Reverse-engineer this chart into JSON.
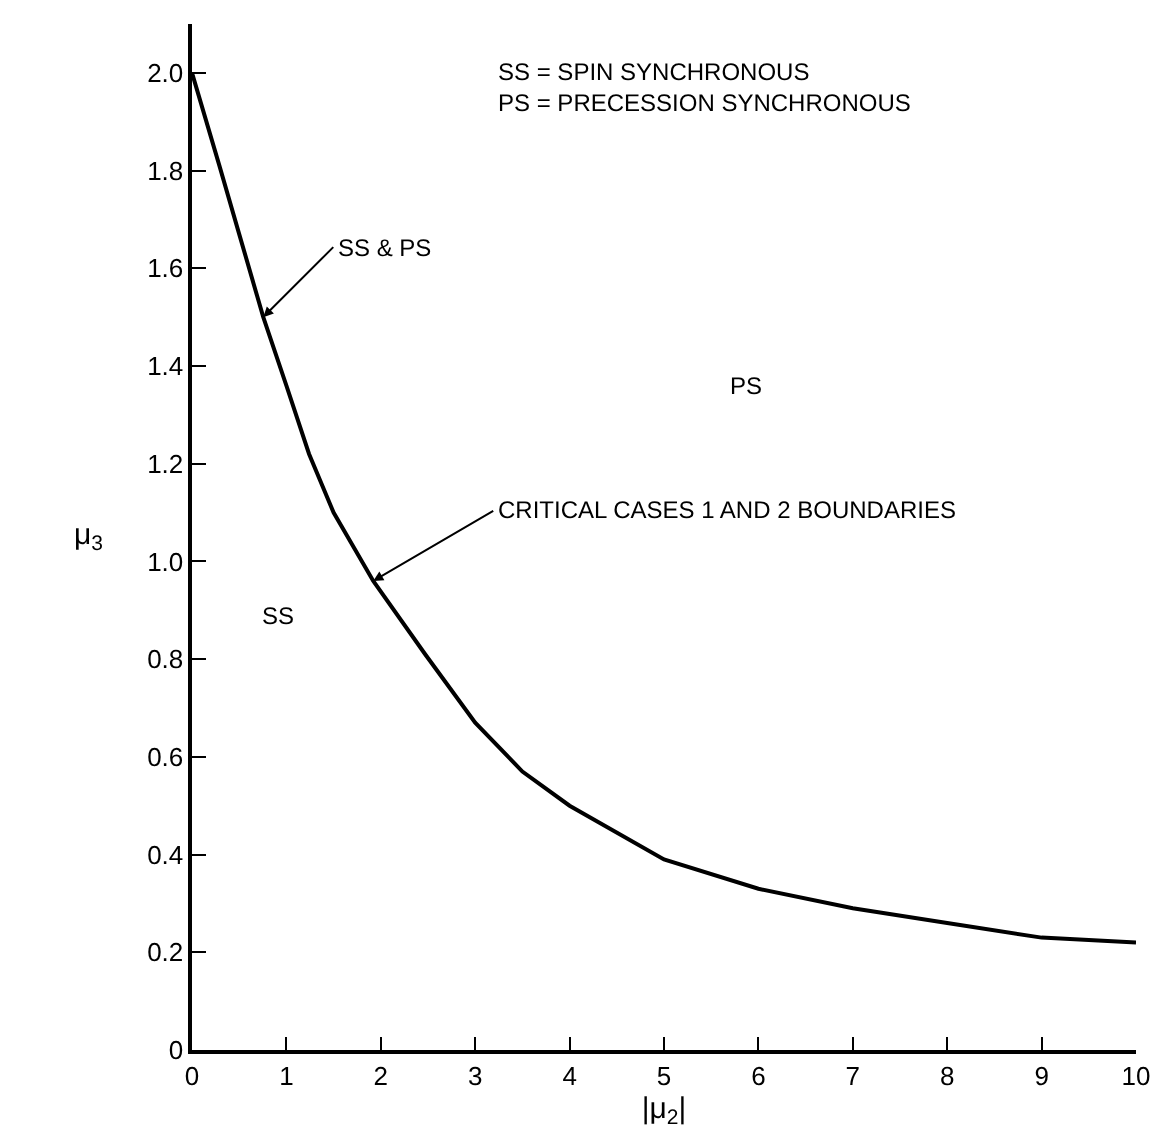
{
  "chart_data": {
    "type": "line",
    "xlabel": "|μ$_{2}$|",
    "ylabel": "μ$_{3}$",
    "x": [
      0,
      0.29,
      0.5,
      0.755,
      1,
      1.24,
      1.5,
      1.92,
      2.47,
      3,
      3.5,
      4,
      5,
      6,
      7,
      8,
      9,
      10
    ],
    "series": [
      {
        "color": "#000000",
        "values": [
          2.0,
          1.81,
          1.67,
          1.5,
          1.36,
          1.22,
          1.1,
          0.96,
          0.81,
          0.67,
          0.57,
          0.5,
          0.39,
          0.33,
          0.29,
          0.26,
          0.23,
          0.22
        ]
      }
    ],
    "xlim": [
      0,
      10
    ],
    "ylim": [
      0,
      2.1
    ],
    "xticks": [
      0,
      1,
      2,
      3,
      4,
      5,
      6,
      7,
      8,
      9,
      10
    ],
    "yticks": [
      0,
      0.2,
      0.4,
      0.6,
      0.8,
      {
        "value": 1,
        "label": "1.0"
      },
      1.2,
      1.4,
      1.6,
      1.8,
      {
        "value": 2,
        "label": "2.0"
      }
    ],
    "grid": false,
    "legend": false,
    "marker": "none",
    "line_style": "solid",
    "annotations": [
      "SS = SPIN SYNCHRONOUS\nPS = PRECESSION SYNCHRONOUS",
      "PS",
      "SS",
      {
        "text": "SS & PS",
        "x": 0.755,
        "y": 1.5
      },
      {
        "text": "CRITICAL CASES 1 AND 2 BOUNDARIES",
        "x": 1.92,
        "y": 0.96
      }
    ]
  }
}
